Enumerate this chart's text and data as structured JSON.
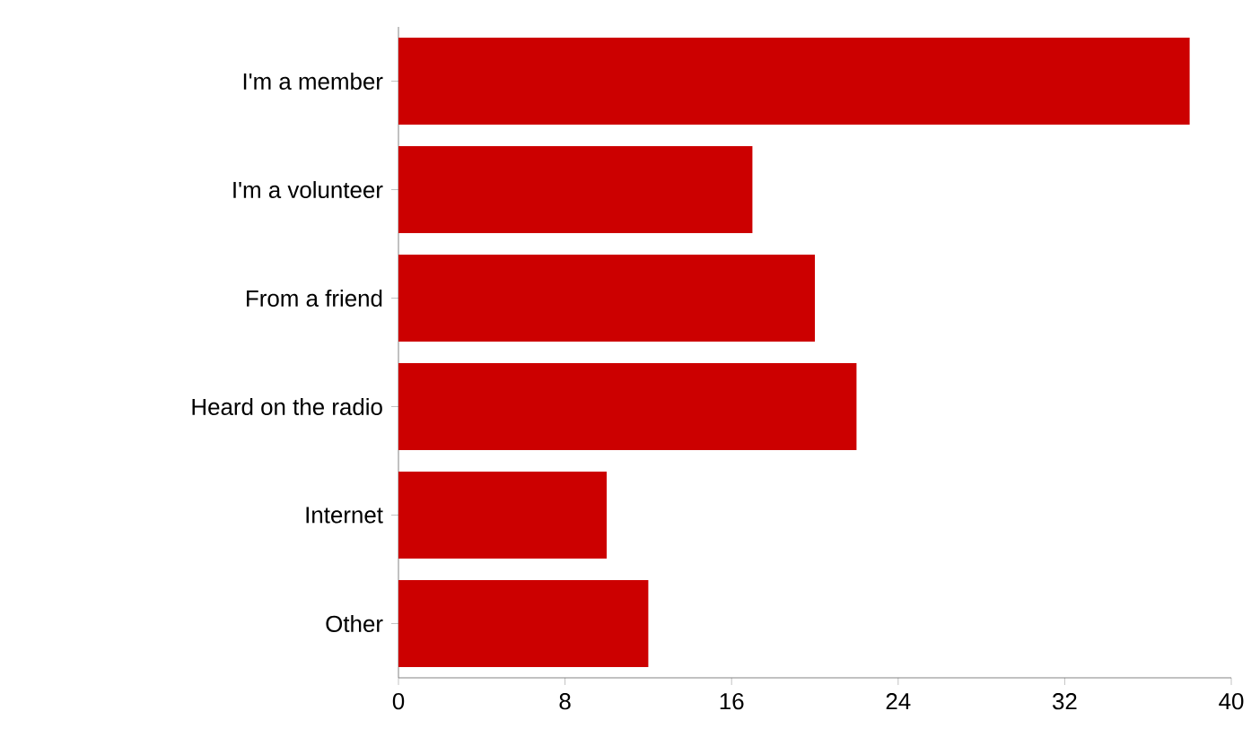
{
  "chart_data": {
    "type": "bar",
    "orientation": "horizontal",
    "categories": [
      "I'm a member",
      "I'm a volunteer",
      "From a friend",
      "Heard on the radio",
      "Internet",
      "Other"
    ],
    "values": [
      38,
      17,
      20,
      22,
      10,
      12
    ],
    "color": "#cc0000",
    "xlim": [
      0,
      40
    ],
    "xticks": [
      0,
      8,
      16,
      24,
      32,
      40
    ],
    "grid": false
  }
}
